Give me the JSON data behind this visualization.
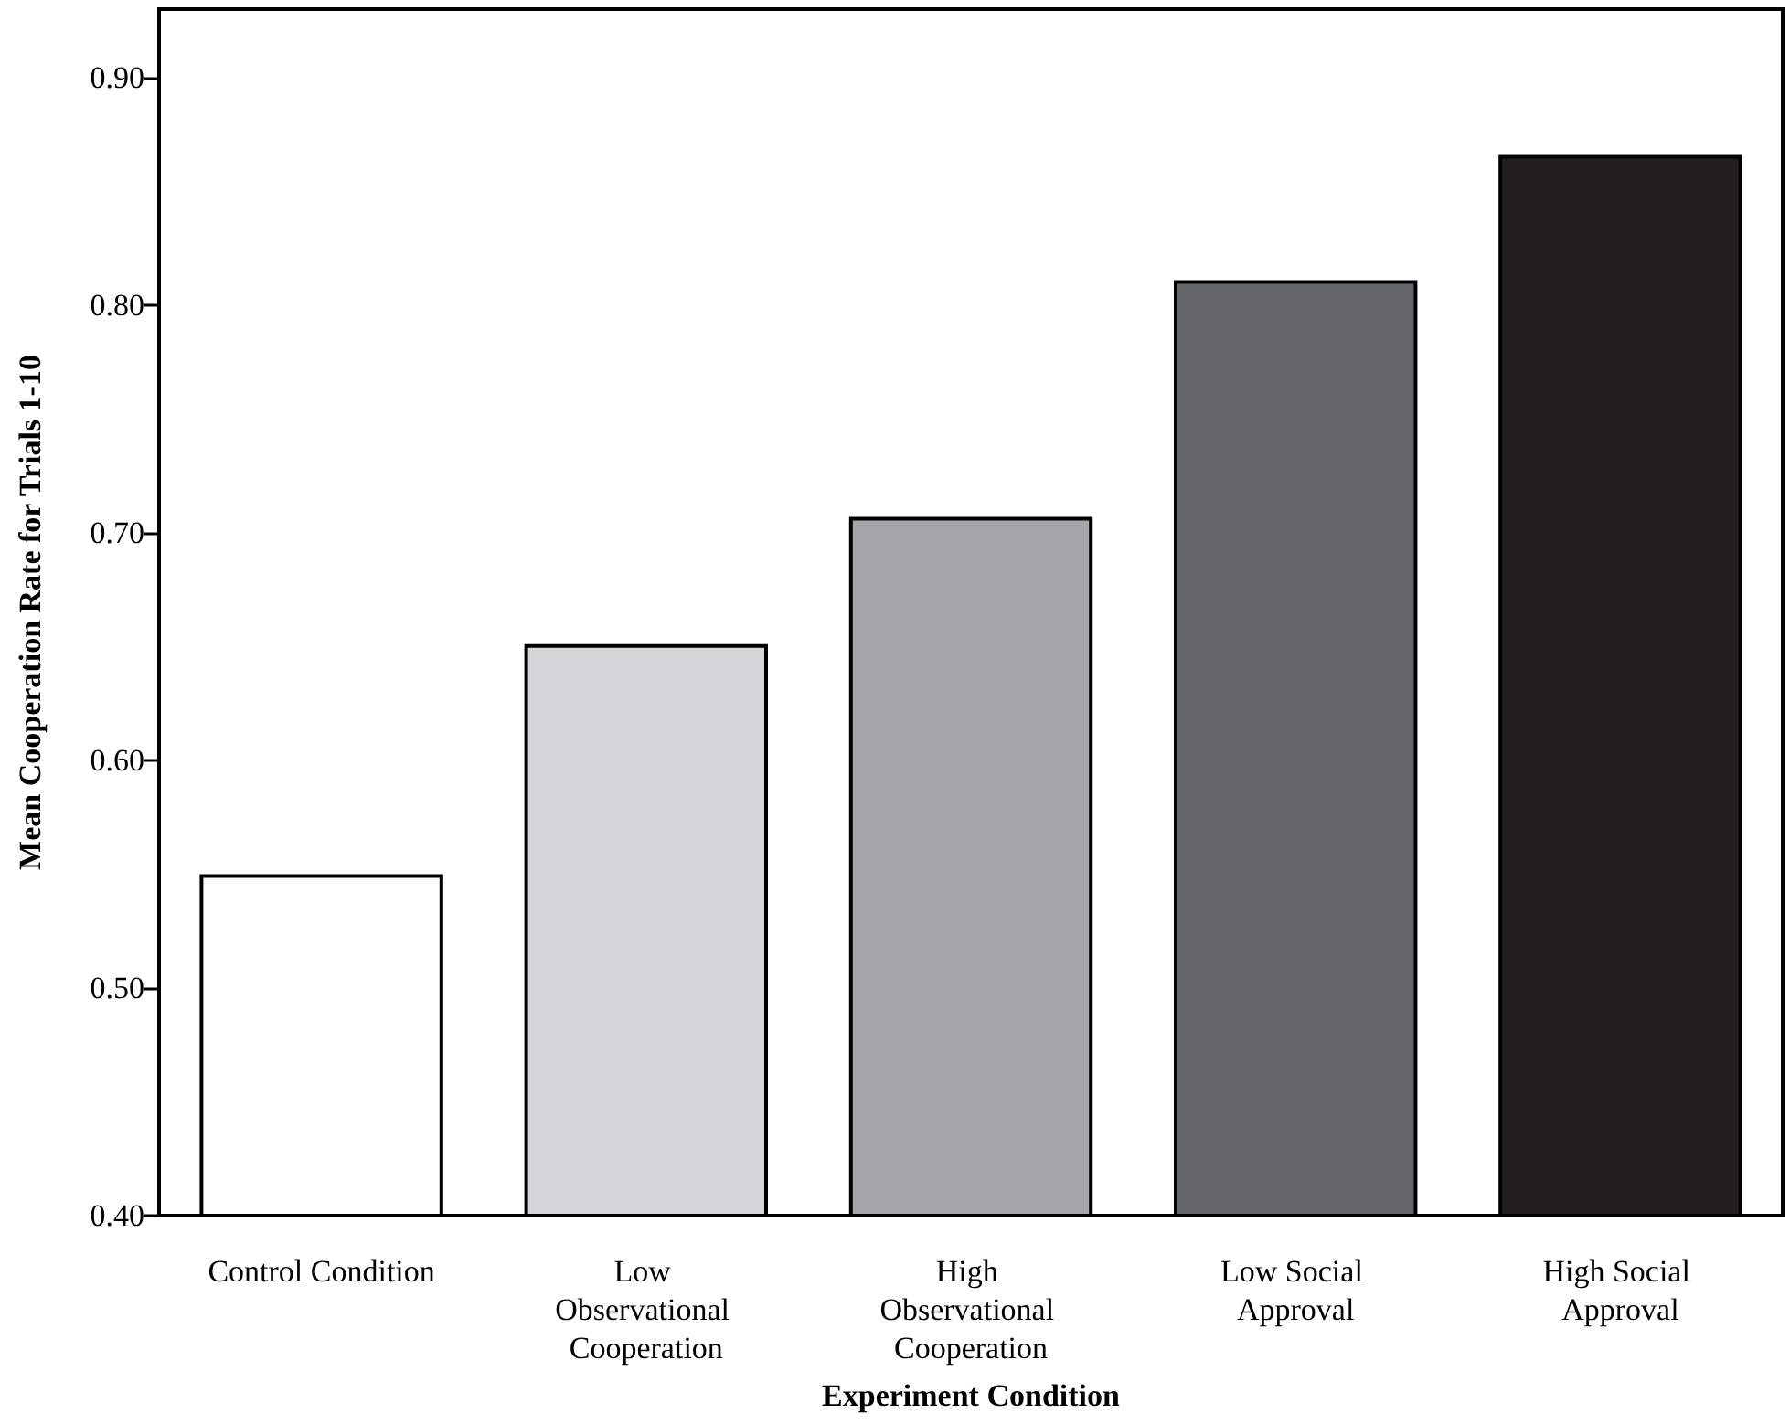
{
  "chart_data": {
    "type": "bar",
    "xlabel": "Experiment Condition",
    "ylabel": "Mean Cooperation Rate for Trials 1-10",
    "categories": [
      "Control Condition",
      "Low Observational Cooperation",
      "High Observational Cooperation",
      "Low Social Approval",
      "High Social Approval"
    ],
    "values": [
      0.55,
      0.651,
      0.707,
      0.811,
      0.866
    ],
    "colors": [
      "#ffffff",
      "#d4d5d7",
      "#a5a6aa",
      "#63676a",
      "#231f20"
    ],
    "ylim": [
      0.4,
      0.93
    ],
    "yticks": [
      {
        "value": 0.4,
        "label": "0.40"
      },
      {
        "value": 0.5,
        "label": "0.50"
      },
      {
        "value": 0.6,
        "label": "0.60"
      },
      {
        "value": 0.7,
        "label": "0.70"
      },
      {
        "value": 0.8,
        "label": "0.80"
      },
      {
        "value": 0.9,
        "label": "0.90"
      }
    ],
    "grid": false
  }
}
